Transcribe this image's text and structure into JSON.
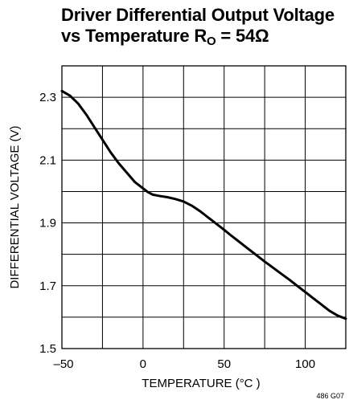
{
  "chart_data": {
    "type": "line",
    "title_line1": "Driver Differential Output Voltage",
    "title_line2_prefix": "vs Temperature R",
    "title_sub": "O",
    "title_line2_suffix": " = 54Ω",
    "xlabel": "TEMPERATURE (°C )",
    "ylabel": "DIFFERENTIAL VOLTAGE (V)",
    "figure_id": "486 G07",
    "xlim": [
      -50,
      125
    ],
    "ylim": [
      1.5,
      2.4
    ],
    "x_ticks": [
      {
        "value": -50,
        "label": "–50"
      },
      {
        "value": 0,
        "label": "0"
      },
      {
        "value": 50,
        "label": "50"
      },
      {
        "value": 100,
        "label": "100"
      }
    ],
    "y_ticks": [
      {
        "value": 1.5,
        "label": "1.5"
      },
      {
        "value": 1.7,
        "label": "1.7"
      },
      {
        "value": 1.9,
        "label": "1.9"
      },
      {
        "value": 2.1,
        "label": "2.1"
      },
      {
        "value": 2.3,
        "label": "2.3"
      }
    ],
    "x_grid": [
      -50,
      -25,
      0,
      25,
      50,
      75,
      100,
      125
    ],
    "y_grid": [
      1.5,
      1.6,
      1.7,
      1.8,
      1.9,
      2.0,
      2.1,
      2.2,
      2.3,
      2.4
    ],
    "grid": true,
    "series": [
      {
        "x": [
          -50,
          -45,
          -40,
          -35,
          -30,
          -25,
          -20,
          -15,
          -10,
          -5,
          0,
          3,
          6,
          10,
          15,
          20,
          25,
          30,
          35,
          40,
          45,
          50,
          55,
          60,
          65,
          70,
          75,
          80,
          85,
          90,
          95,
          100,
          105,
          110,
          115,
          120,
          125
        ],
        "y": [
          2.32,
          2.305,
          2.28,
          2.245,
          2.205,
          2.165,
          2.125,
          2.09,
          2.06,
          2.03,
          2.01,
          1.998,
          1.99,
          1.986,
          1.982,
          1.976,
          1.968,
          1.955,
          1.938,
          1.918,
          1.898,
          1.878,
          1.857,
          1.837,
          1.817,
          1.797,
          1.777,
          1.758,
          1.739,
          1.72,
          1.7,
          1.68,
          1.66,
          1.64,
          1.62,
          1.605,
          1.595
        ]
      }
    ]
  }
}
